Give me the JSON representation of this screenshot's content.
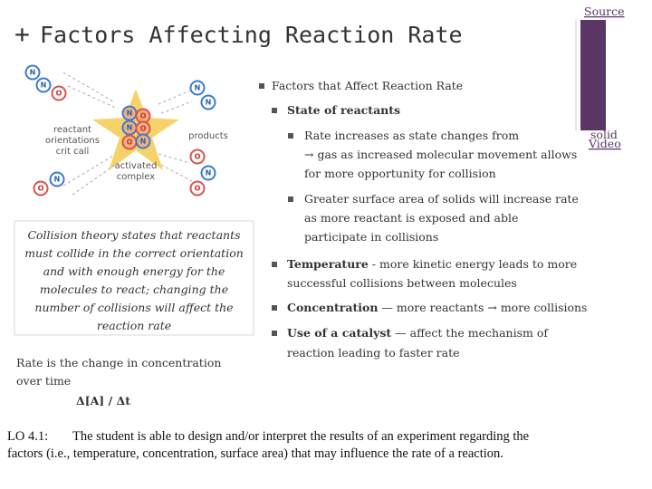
{
  "header": {
    "plus": "+",
    "title": "Factors Affecting Reaction Rate",
    "source": "Source"
  },
  "media": {
    "overlay_lines": [
      "solid",
      "Video"
    ]
  },
  "diagram": {
    "labels": [
      "reactant",
      "orientations",
      "crit call",
      "products",
      "activated",
      "complex"
    ],
    "atoms": [
      "N",
      "N",
      "O",
      "N",
      "N",
      "N",
      "O",
      "N",
      "O",
      "O",
      "N",
      "O",
      "N",
      "O",
      "O",
      "N"
    ]
  },
  "caption": {
    "lines": [
      "Collision theory states that reactants",
      "must collide in the correct orientation",
      "and with enough energy for the",
      "molecules to react; changing the",
      "number of collisions will affect the",
      "reaction rate"
    ]
  },
  "rate": {
    "lines": [
      "Rate is the change in concentration",
      "over time"
    ],
    "formula": "Δ[A] / Δt"
  },
  "bullets": [
    {
      "level": 1,
      "lines": [
        "Factors that Affect Reaction Rate"
      ]
    },
    {
      "level": 2,
      "lead": "State of reactants"
    },
    {
      "level": 3,
      "lines": [
        "Rate increases as state changes from",
        "→ gas as increased molecular movement allows",
        "for more opportunity for collision"
      ]
    },
    {
      "level": 3,
      "lines": [
        "Greater surface area of solids will increase rate",
        "as more reactant is exposed and able",
        "participate in collisions"
      ]
    },
    {
      "level": 2,
      "lead": "Temperature",
      "lines": [
        " - more kinetic energy leads to more",
        "successful collisions between molecules"
      ]
    },
    {
      "level": 2,
      "lead": "Concentration",
      "lines": [
        " — more reactants → more collisions"
      ]
    },
    {
      "level": 2,
      "lead": "Use of a catalyst",
      "lines": [
        " — affect the mechanism of",
        "reaction leading to faster rate"
      ]
    }
  ],
  "objective": {
    "code": "LO 4.1:",
    "lines": [
      "The student is able to design and/or interpret the results of an experiment regarding the",
      "factors (i.e., temperature, concentration, surface area) that may influence the rate of a reaction."
    ]
  }
}
